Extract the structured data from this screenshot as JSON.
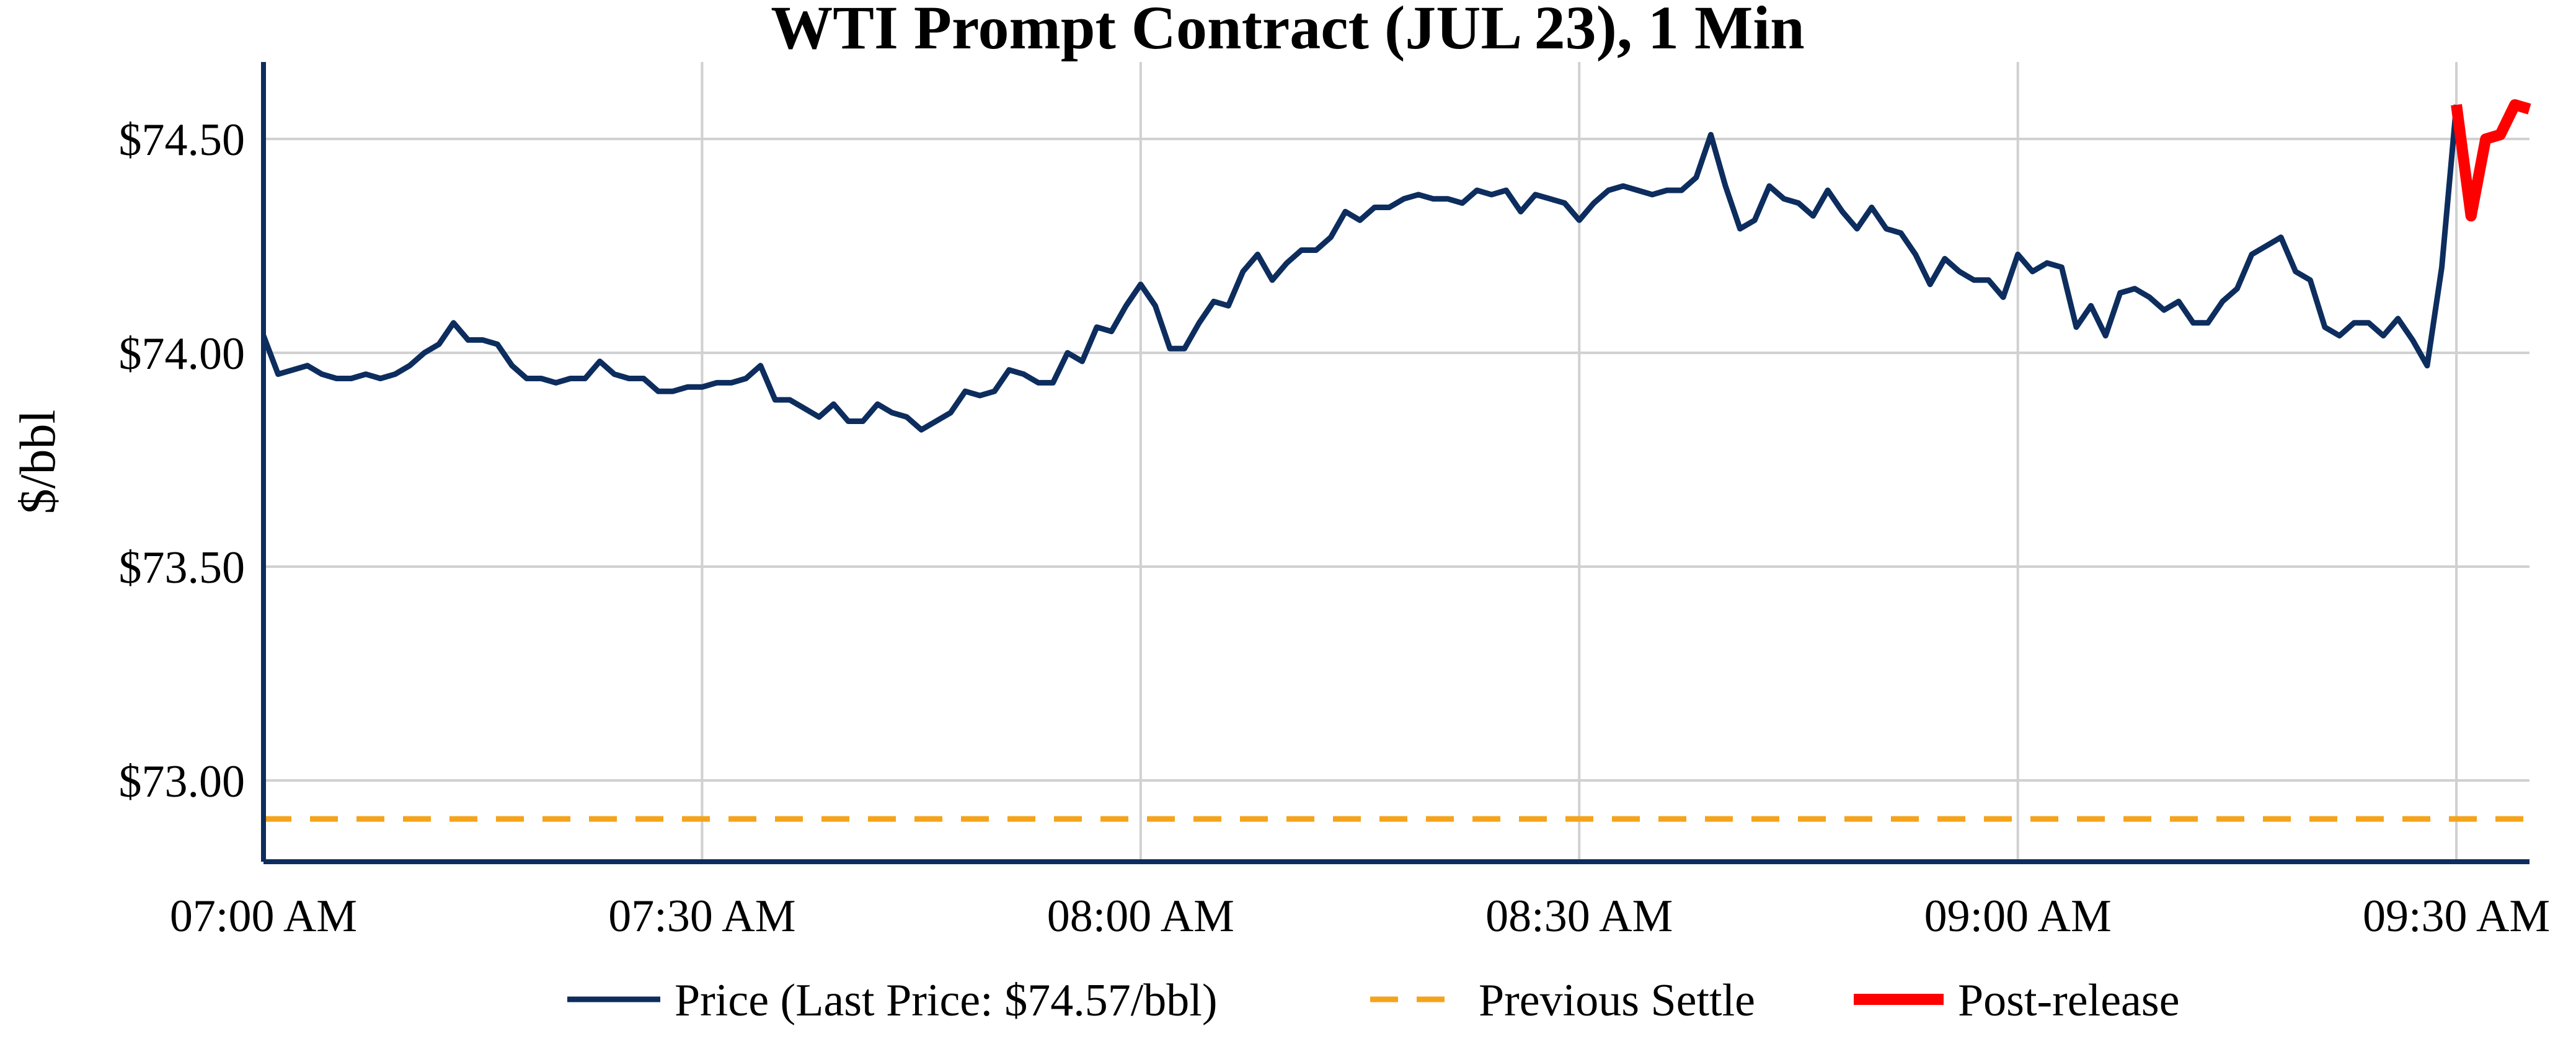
{
  "chart_data": {
    "type": "line",
    "title": "WTI Prompt Contract (JUL 23), 1 Min",
    "ylabel": "$/bbl",
    "xlabel": "",
    "y_ticks": [
      {
        "value": 73.0,
        "label": "$73.00"
      },
      {
        "value": 73.5,
        "label": "$73.50"
      },
      {
        "value": 74.0,
        "label": "$74.00"
      },
      {
        "value": 74.5,
        "label": "$74.50"
      }
    ],
    "x_ticks": [
      {
        "minute": 0,
        "label": "07:00 AM"
      },
      {
        "minute": 30,
        "label": "07:30 AM"
      },
      {
        "minute": 60,
        "label": "08:00 AM"
      },
      {
        "minute": 90,
        "label": "08:30 AM"
      },
      {
        "minute": 120,
        "label": "09:00 AM"
      },
      {
        "minute": 150,
        "label": "09:30 AM"
      }
    ],
    "x_start": "07:00 AM",
    "xlim_minutes": [
      0,
      155
    ],
    "ylim": [
      72.81,
      74.68
    ],
    "grid": true,
    "legend_position": "bottom",
    "colors": {
      "price": "#0d2d5e",
      "previous_settle": "#f5a31a",
      "post_release": "#ff0000",
      "grid": "#d0d0d0",
      "axis": "#0d2d5e"
    },
    "previous_settle": 72.91,
    "series": [
      {
        "name": "Price (Last Price: $74.57/bbl)",
        "style": "solid",
        "values": [
          74.04,
          73.95,
          73.96,
          73.97,
          73.95,
          73.94,
          73.94,
          73.95,
          73.94,
          73.95,
          73.97,
          74.0,
          74.02,
          74.07,
          74.03,
          74.03,
          74.02,
          73.97,
          73.94,
          73.94,
          73.93,
          73.94,
          73.94,
          73.98,
          73.95,
          73.94,
          73.94,
          73.91,
          73.91,
          73.92,
          73.92,
          73.93,
          73.93,
          73.94,
          73.97,
          73.89,
          73.89,
          73.87,
          73.85,
          73.88,
          73.84,
          73.84,
          73.88,
          73.86,
          73.85,
          73.82,
          73.84,
          73.86,
          73.91,
          73.9,
          73.91,
          73.96,
          73.95,
          73.93,
          73.93,
          74.0,
          73.98,
          74.06,
          74.05,
          74.11,
          74.16,
          74.11,
          74.01,
          74.01,
          74.07,
          74.12,
          74.11,
          74.19,
          74.23,
          74.17,
          74.21,
          74.24,
          74.24,
          74.27,
          74.33,
          74.31,
          74.34,
          74.34,
          74.36,
          74.37,
          74.36,
          74.36,
          74.35,
          74.38,
          74.37,
          74.38,
          74.33,
          74.37,
          74.36,
          74.35,
          74.31,
          74.35,
          74.38,
          74.39,
          74.38,
          74.37,
          74.38,
          74.38,
          74.41,
          74.51,
          74.39,
          74.29,
          74.31,
          74.39,
          74.36,
          74.35,
          74.32,
          74.38,
          74.33,
          74.29,
          74.34,
          74.29,
          74.28,
          74.23,
          74.16,
          74.22,
          74.19,
          74.17,
          74.17,
          74.13,
          74.23,
          74.19,
          74.21,
          74.2,
          74.06,
          74.11,
          74.04,
          74.14,
          74.15,
          74.13,
          74.1,
          74.12,
          74.07,
          74.07,
          74.12,
          74.15,
          74.23,
          74.25,
          74.27,
          74.19,
          74.17,
          74.06,
          74.04,
          74.07,
          74.07,
          74.04,
          74.08,
          74.03,
          73.97,
          74.2,
          74.58
        ]
      },
      {
        "name": "Previous Settle",
        "style": "dashed"
      },
      {
        "name": "Post-release",
        "style": "solid",
        "start_minute": 150,
        "values": [
          74.58,
          74.32,
          74.5,
          74.51,
          74.58,
          74.57
        ]
      }
    ]
  }
}
